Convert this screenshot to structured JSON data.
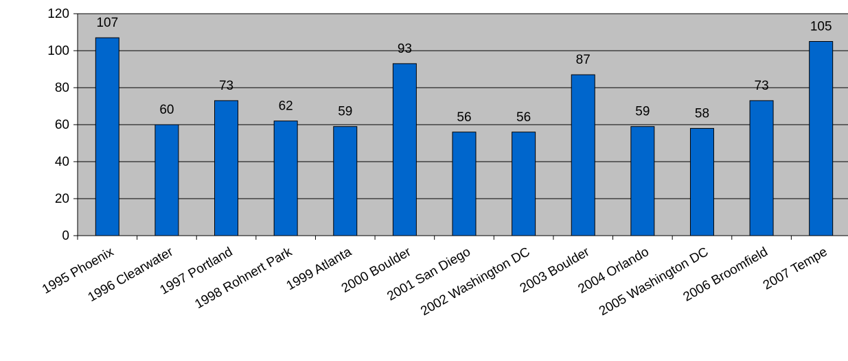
{
  "colors": {
    "plot_background": "#c0c0c0",
    "bar_fill": "#0066cc",
    "bar_stroke": "#000000",
    "gridline": "#000000",
    "text": "#000000"
  },
  "chart_data": {
    "type": "bar",
    "title": "",
    "xlabel": "",
    "ylabel": "",
    "categories": [
      "1995 Phoenix",
      "1996 Clearwater",
      "1997 Portland",
      "1998 Rohnert Park",
      "1999 Atlanta",
      "2000 Boulder",
      "2001 San Diego",
      "2002 Washington DC",
      "2003 Boulder",
      "2004 Orlando",
      "2005 Washington DC",
      "2006 Broomfield",
      "2007 Tempe"
    ],
    "values": [
      107,
      60,
      73,
      62,
      59,
      93,
      56,
      56,
      87,
      59,
      58,
      73,
      105
    ],
    "ylim": [
      0,
      120
    ],
    "yticks": [
      0,
      20,
      40,
      60,
      80,
      100,
      120
    ],
    "grid": true,
    "legend": false,
    "data_labels": true
  }
}
